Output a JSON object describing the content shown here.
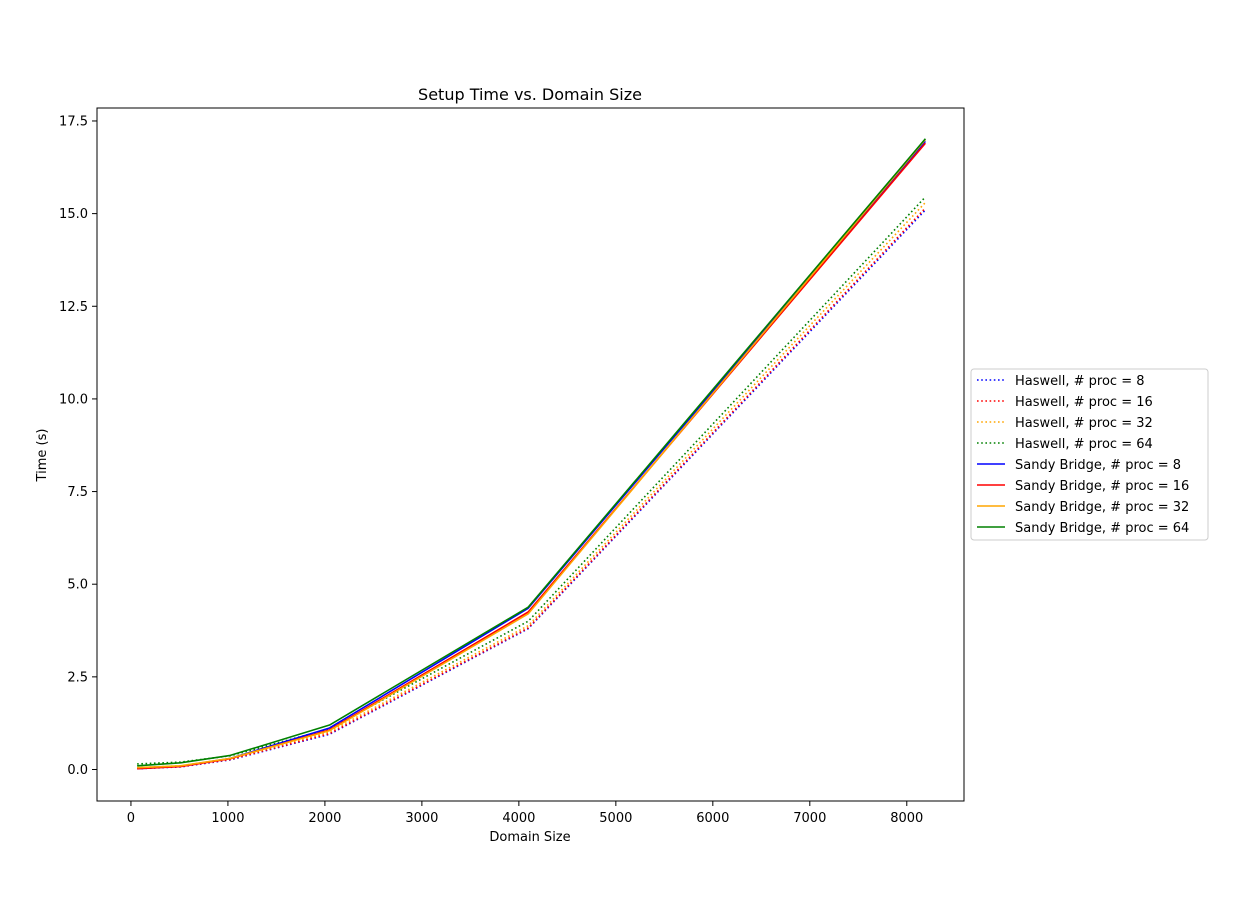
{
  "chart_data": {
    "type": "line",
    "title": "Setup Time vs. Domain Size",
    "xlabel": "Domain Size",
    "ylabel": "Time (s)",
    "xlim": [
      -350,
      8590
    ],
    "ylim": [
      -0.85,
      17.85
    ],
    "xticks": [
      0,
      1000,
      2000,
      3000,
      4000,
      5000,
      6000,
      7000,
      8000
    ],
    "yticks": [
      0.0,
      2.5,
      5.0,
      7.5,
      10.0,
      12.5,
      15.0,
      17.5
    ],
    "xtick_labels": [
      "0",
      "1000",
      "2000",
      "3000",
      "4000",
      "5000",
      "6000",
      "7000",
      "8000"
    ],
    "ytick_labels": [
      "0.0",
      "2.5",
      "5.0",
      "7.5",
      "10.0",
      "12.5",
      "15.0",
      "17.5"
    ],
    "grid": false,
    "legend_position": "center-right-outside",
    "x": [
      64,
      512,
      1024,
      2048,
      4096,
      8192
    ],
    "series": [
      {
        "name": "Haswell, # proc = 8",
        "style": "dotted",
        "color": "#0000ff",
        "values": [
          0.02,
          0.07,
          0.26,
          0.95,
          3.8,
          15.1
        ]
      },
      {
        "name": "Haswell, # proc = 16",
        "style": "dotted",
        "color": "#ff0000",
        "values": [
          0.03,
          0.08,
          0.27,
          0.97,
          3.82,
          15.15
        ]
      },
      {
        "name": "Haswell, # proc = 32",
        "style": "dotted",
        "color": "#ffa500",
        "values": [
          0.05,
          0.1,
          0.29,
          1.02,
          3.88,
          15.3
        ]
      },
      {
        "name": "Haswell, # proc = 64",
        "style": "dotted",
        "color": "#008000",
        "values": [
          0.15,
          0.2,
          0.37,
          1.1,
          4.0,
          15.45
        ]
      },
      {
        "name": "Sandy Bridge, # proc = 8",
        "style": "solid",
        "color": "#0000ff",
        "values": [
          0.02,
          0.09,
          0.3,
          1.12,
          4.35,
          16.95
        ]
      },
      {
        "name": "Sandy Bridge, # proc = 16",
        "style": "solid",
        "color": "#ff0000",
        "values": [
          0.02,
          0.08,
          0.29,
          1.07,
          4.25,
          16.9
        ]
      },
      {
        "name": "Sandy Bridge, # proc = 32",
        "style": "solid",
        "color": "#ffa500",
        "values": [
          0.05,
          0.1,
          0.3,
          1.05,
          4.2,
          17.0
        ]
      },
      {
        "name": "Sandy Bridge, # proc = 64",
        "style": "solid",
        "color": "#008000",
        "values": [
          0.1,
          0.18,
          0.38,
          1.2,
          4.38,
          17.02
        ]
      }
    ]
  }
}
